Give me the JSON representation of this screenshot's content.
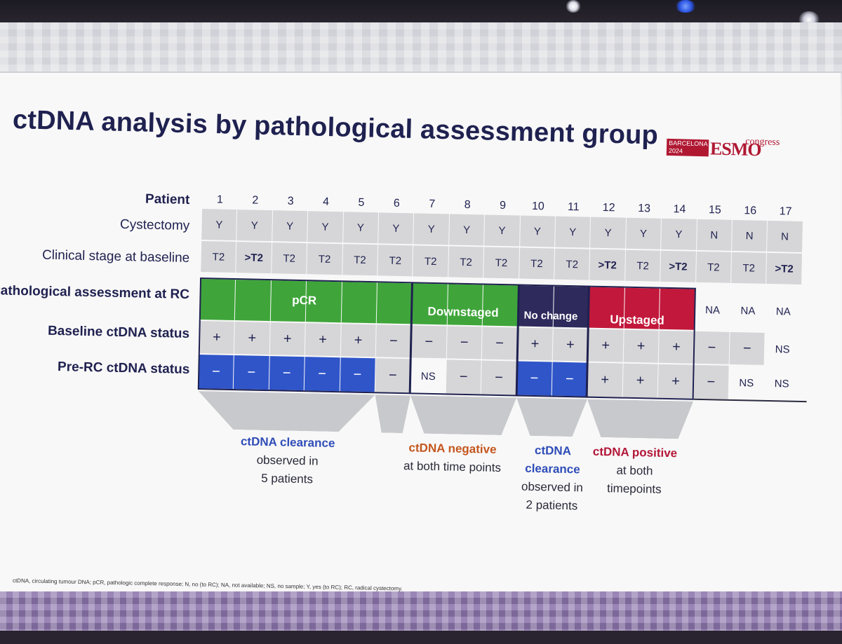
{
  "slide": {
    "title": "ctDNA analysis by pathological assessment group",
    "logo": {
      "line1": "BARCELONA",
      "line2": "2024",
      "esmo": "ESMO",
      "congress": "congress",
      "brand_color": "#b01832"
    },
    "row_labels": {
      "patient": "Patient",
      "cystectomy": "Cystectomy",
      "clinical_stage": "Clinical stage at baseline",
      "pathological": "Pathological assessment at RC",
      "baseline_ctdna": "Baseline ctDNA status",
      "prerc_ctdna": "Pre-RC ctDNA status"
    },
    "patients": [
      "1",
      "2",
      "3",
      "4",
      "5",
      "6",
      "7",
      "8",
      "9",
      "10",
      "11",
      "12",
      "13",
      "14",
      "15",
      "16",
      "17"
    ],
    "cystectomy": [
      "Y",
      "Y",
      "Y",
      "Y",
      "Y",
      "Y",
      "Y",
      "Y",
      "Y",
      "Y",
      "Y",
      "Y",
      "Y",
      "Y",
      "N",
      "N",
      "N"
    ],
    "clinical_stage": [
      "T2",
      ">T2",
      "T2",
      "T2",
      "T2",
      "T2",
      "T2",
      "T2",
      "T2",
      "T2",
      "T2",
      ">T2",
      "T2",
      ">T2",
      "T2",
      "T2",
      ">T2"
    ],
    "pathological_groups": [
      "pCR",
      "Downstaged",
      "No change",
      "Upstaged"
    ],
    "pathological_na": [
      "NA",
      "NA",
      "NA"
    ],
    "baseline_ctdna": [
      "+",
      "+",
      "+",
      "+",
      "+",
      "−",
      "−",
      "−",
      "−",
      "+",
      "+",
      "+",
      "+",
      "+",
      "−",
      "−",
      "NS"
    ],
    "prerc_ctdna": [
      "−",
      "−",
      "−",
      "−",
      "−",
      "−",
      "NS",
      "−",
      "−",
      "−",
      "−",
      "+",
      "+",
      "+",
      "−",
      "NS",
      "NS"
    ],
    "captions": [
      {
        "key": "ctDNA clearance",
        "rest": [
          "observed in",
          "5 patients"
        ]
      },
      {
        "key": "ctDNA negative",
        "rest": [
          "at both time points"
        ]
      },
      {
        "key": "ctDNA",
        "key2": "clearance",
        "rest": [
          "observed in",
          "2 patients"
        ]
      },
      {
        "key": "ctDNA positive",
        "rest": [
          "at both",
          "timepoints"
        ]
      }
    ],
    "footnote": "ctDNA, circulating tumour DNA; pCR, pathologic complete response; N, no (to RC); NA, not available; NS, no sample; Y, yes (to RC); RC, radical cystectomy.",
    "colors": {
      "pcr": "#3fa53a",
      "downstaged": "#3fa53a",
      "no_change": "#2e2a5c",
      "upstaged": "#c2183b",
      "clearance": "#2f55c9"
    }
  }
}
